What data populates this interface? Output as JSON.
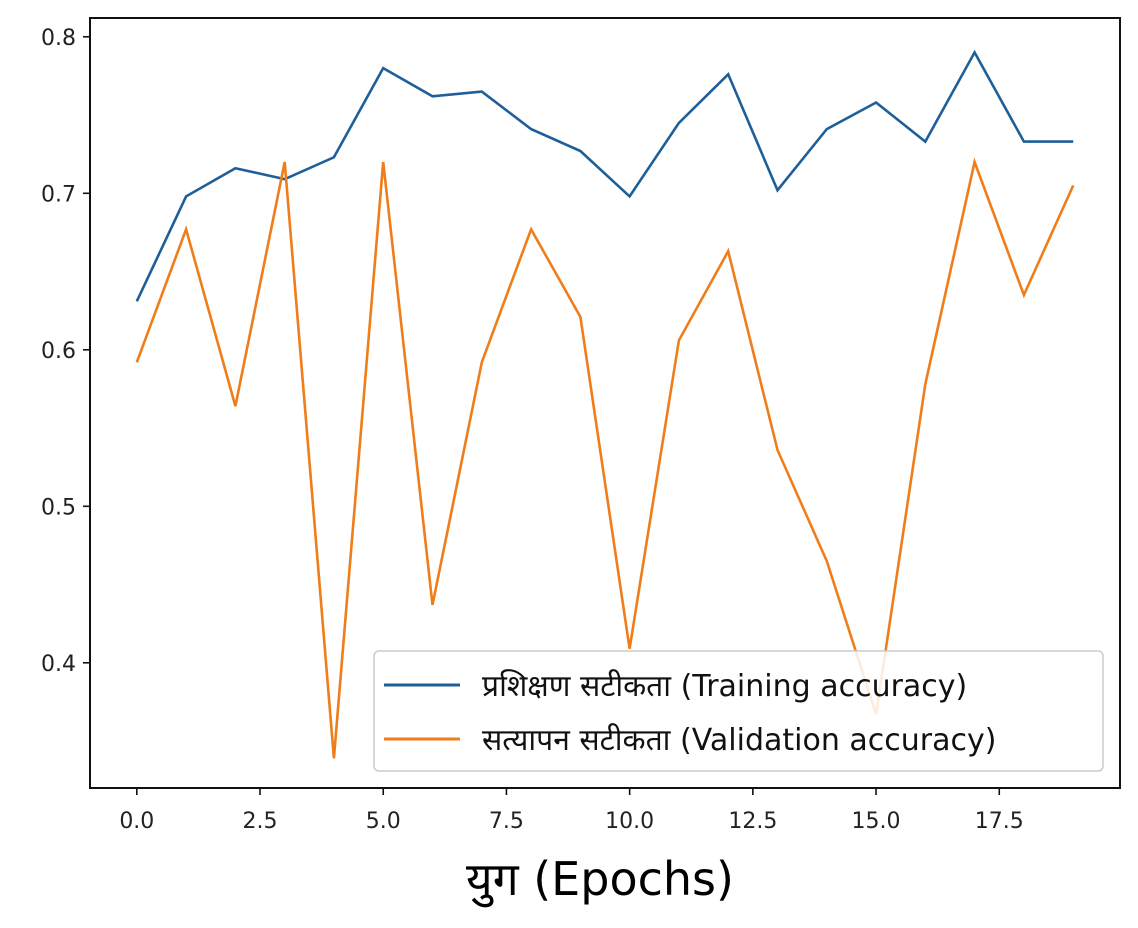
{
  "chart_data": {
    "type": "line",
    "title": "",
    "xlabel": "युग (Epochs)",
    "ylabel": "",
    "xlim": [
      -0.95,
      19.95
    ],
    "ylim": [
      0.32,
      0.812
    ],
    "grid": false,
    "legend_position": "lower-right",
    "x_ticks": [
      0.0,
      2.5,
      5.0,
      7.5,
      10.0,
      12.5,
      15.0,
      17.5
    ],
    "x_tick_labels": [
      "0.0",
      "2.5",
      "5.0",
      "7.5",
      "10.0",
      "12.5",
      "15.0",
      "17.5"
    ],
    "y_ticks": [
      0.4,
      0.5,
      0.6,
      0.7,
      0.8
    ],
    "y_tick_labels": [
      "0.4",
      "0.5",
      "0.6",
      "0.7",
      "0.8"
    ],
    "x": [
      0,
      1,
      2,
      3,
      4,
      5,
      6,
      7,
      8,
      9,
      10,
      11,
      12,
      13,
      14,
      15,
      16,
      17,
      18,
      19
    ],
    "series": [
      {
        "name": "प्रशिक्षण सटीकता (Training accuracy)",
        "color": "#1f5f99",
        "values": [
          0.631,
          0.698,
          0.716,
          0.709,
          0.723,
          0.78,
          0.762,
          0.765,
          0.741,
          0.727,
          0.698,
          0.745,
          0.776,
          0.702,
          0.741,
          0.758,
          0.733,
          0.79,
          0.733,
          0.733
        ]
      },
      {
        "name": "सत्यापन सटीकता (Validation accuracy)",
        "color": "#ef7d1a",
        "values": [
          0.592,
          0.677,
          0.564,
          0.72,
          0.339,
          0.72,
          0.437,
          0.592,
          0.677,
          0.621,
          0.409,
          0.606,
          0.663,
          0.536,
          0.465,
          0.367,
          0.578,
          0.72,
          0.635,
          0.705
        ]
      }
    ]
  }
}
